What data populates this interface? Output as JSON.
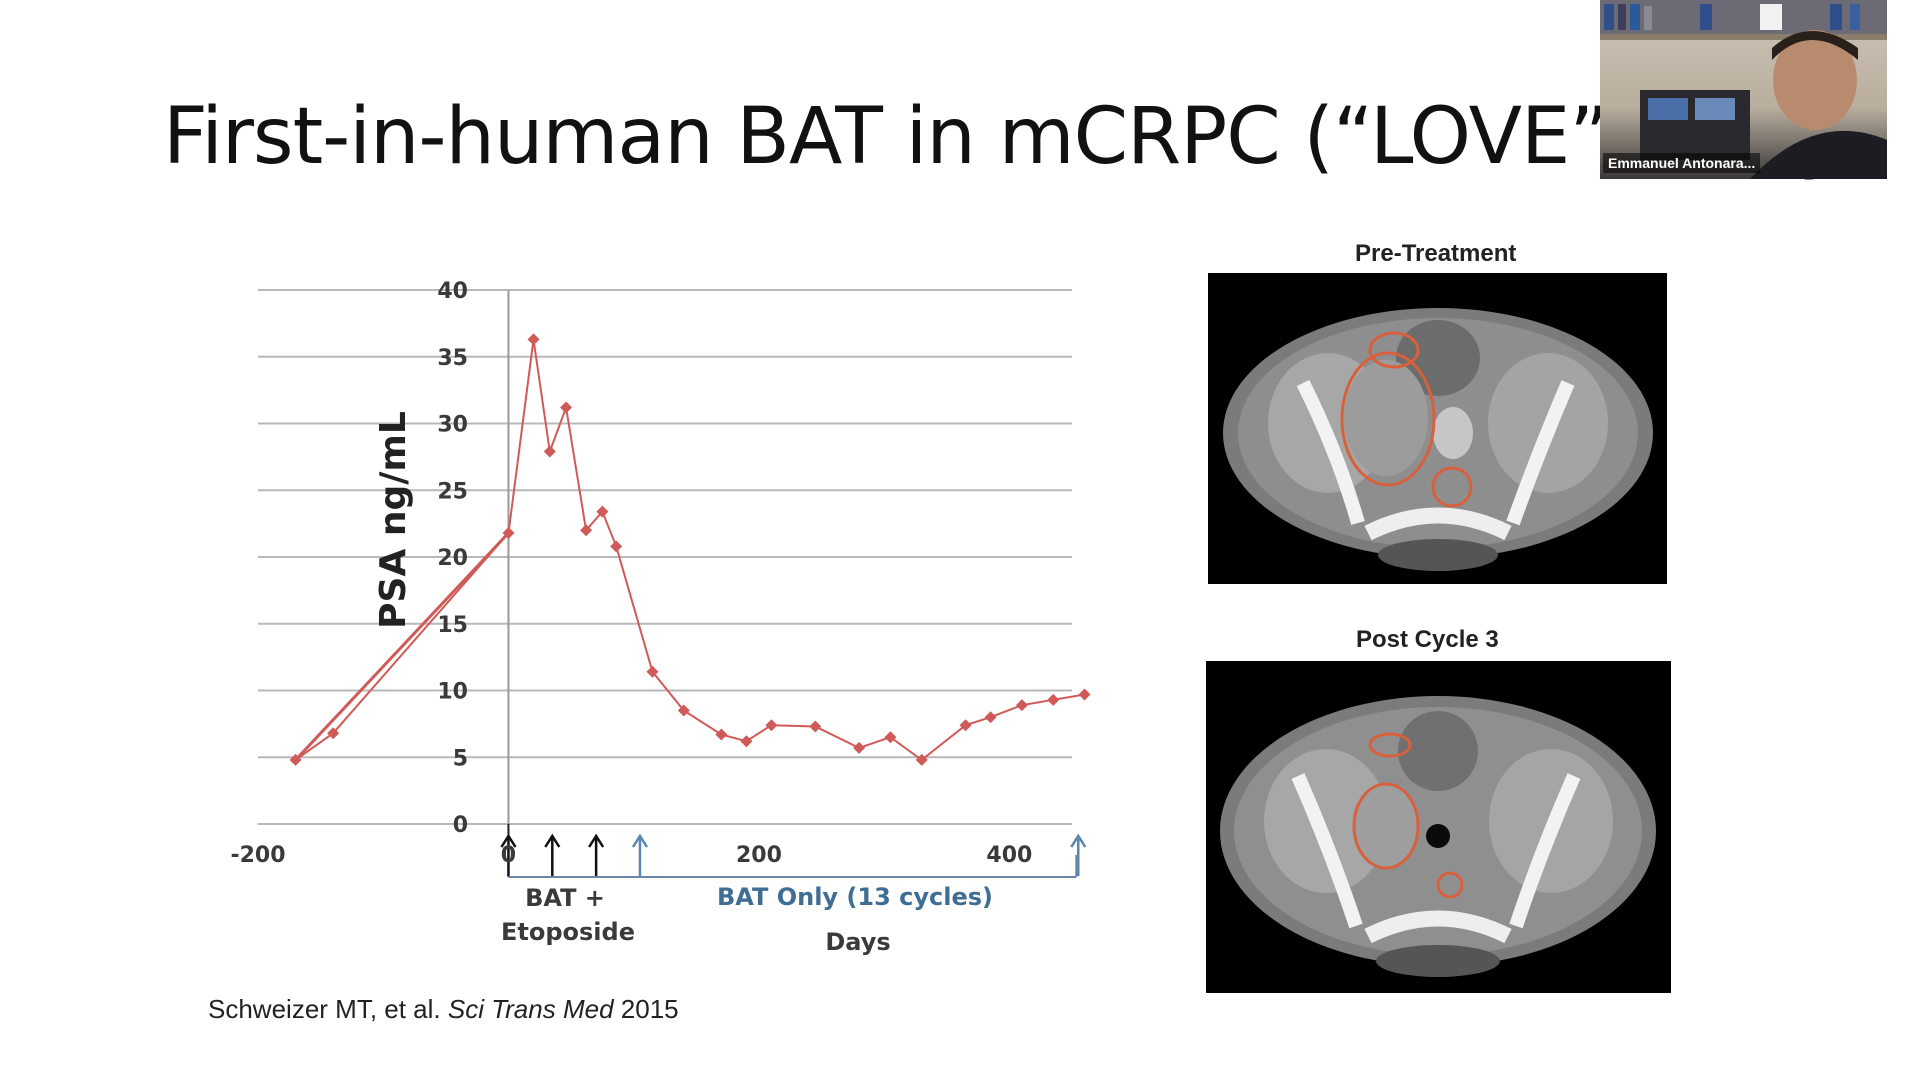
{
  "slide": {
    "title": "First-in-human BAT in mCRPC  (“LOVE” study)",
    "citation_authors": "Schweizer MT, et al. ",
    "citation_journal": "Sci Trans Med",
    "citation_year": " 2015"
  },
  "images": {
    "pre_caption": "Pre-Treatment",
    "post_caption": "Post Cycle 3"
  },
  "webcam": {
    "participant_name": "Emmanuel Antonara..."
  },
  "annotations": {
    "bat_etoposide_line1": "BAT +",
    "bat_etoposide_line2": "Etoposide",
    "bat_only": "BAT Only (13 cycles)"
  },
  "colors": {
    "series": "#d05a57",
    "grid": "#b8b8b8",
    "blue_arrow": "#5b86b0",
    "lesion_circle": "#d9603d"
  },
  "chart_data": {
    "type": "line",
    "xlabel": "Days",
    "ylabel": "PSA ng/mL",
    "xlim": [
      -200,
      450
    ],
    "ylim": [
      0,
      40
    ],
    "x_ticks": [
      "-200",
      "0",
      "200",
      "400"
    ],
    "y_ticks": [
      "0",
      "5",
      "10",
      "15",
      "20",
      "25",
      "30",
      "35",
      "40"
    ],
    "grid": true,
    "series": [
      {
        "x": [
          -170,
          -140,
          0,
          20,
          33,
          46,
          62,
          75,
          86,
          115,
          140,
          170,
          190,
          210,
          245,
          280,
          305,
          330,
          365,
          385,
          410,
          435,
          460
        ],
        "y": [
          4.8,
          6.8,
          21.8,
          36.3,
          27.9,
          31.2,
          22.0,
          23.4,
          20.8,
          11.4,
          8.5,
          6.7,
          6.2,
          7.4,
          7.3,
          5.7,
          6.5,
          4.8,
          7.4,
          8.0,
          8.9,
          9.3,
          9.7
        ]
      }
    ],
    "black_arrows_x": [
      0,
      35,
      70
    ],
    "blue_arrows_x": [
      105,
      455
    ]
  }
}
